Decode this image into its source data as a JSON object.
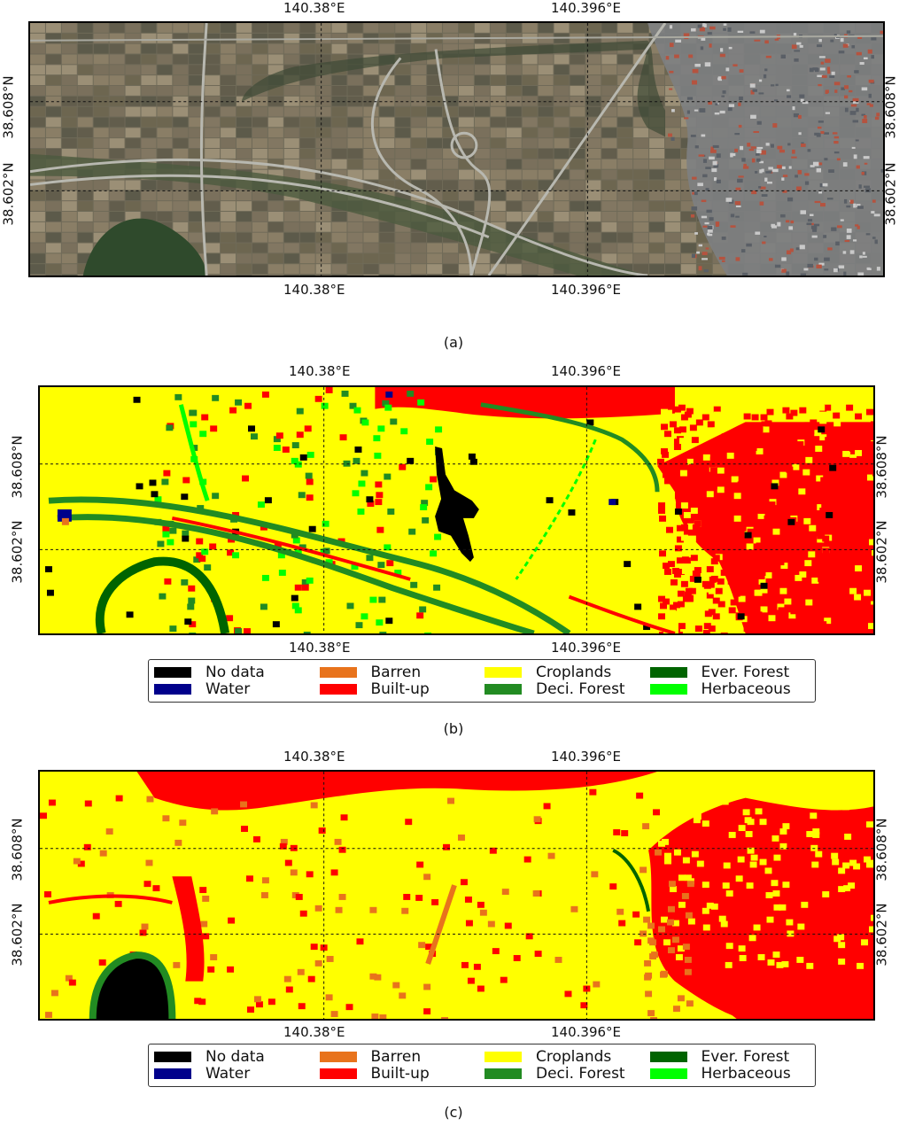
{
  "panels": [
    {
      "id": "a",
      "caption": "(a)",
      "kind": "satellite",
      "x_ticks": [
        "140.38°E",
        "140.396°E"
      ],
      "y_ticks": [
        "38.608°N",
        "38.602°N"
      ],
      "legend": false
    },
    {
      "id": "b",
      "caption": "(b)",
      "kind": "classification-b",
      "x_ticks": [
        "140.38°E",
        "140.396°E"
      ],
      "y_ticks": [
        "38.608°N",
        "38.602°N"
      ],
      "legend": true
    },
    {
      "id": "c",
      "caption": "(c)",
      "kind": "classification-c",
      "x_ticks": [
        "140.38°E",
        "140.396°E"
      ],
      "y_ticks": [
        "38.608°N",
        "38.602°N"
      ],
      "legend": true
    }
  ],
  "legend_items": [
    {
      "label": "No data",
      "color": "#000000"
    },
    {
      "label": "Barren",
      "color": "#e8731c"
    },
    {
      "label": "Croplands",
      "color": "#ffff00"
    },
    {
      "label": "Ever. Forest",
      "color": "#006400"
    },
    {
      "label": "Water",
      "color": "#00008b"
    },
    {
      "label": "Built-up",
      "color": "#ff0000"
    },
    {
      "label": "Deci. Forest",
      "color": "#228b22"
    },
    {
      "label": "Herbaceous",
      "color": "#00ff00"
    }
  ]
}
